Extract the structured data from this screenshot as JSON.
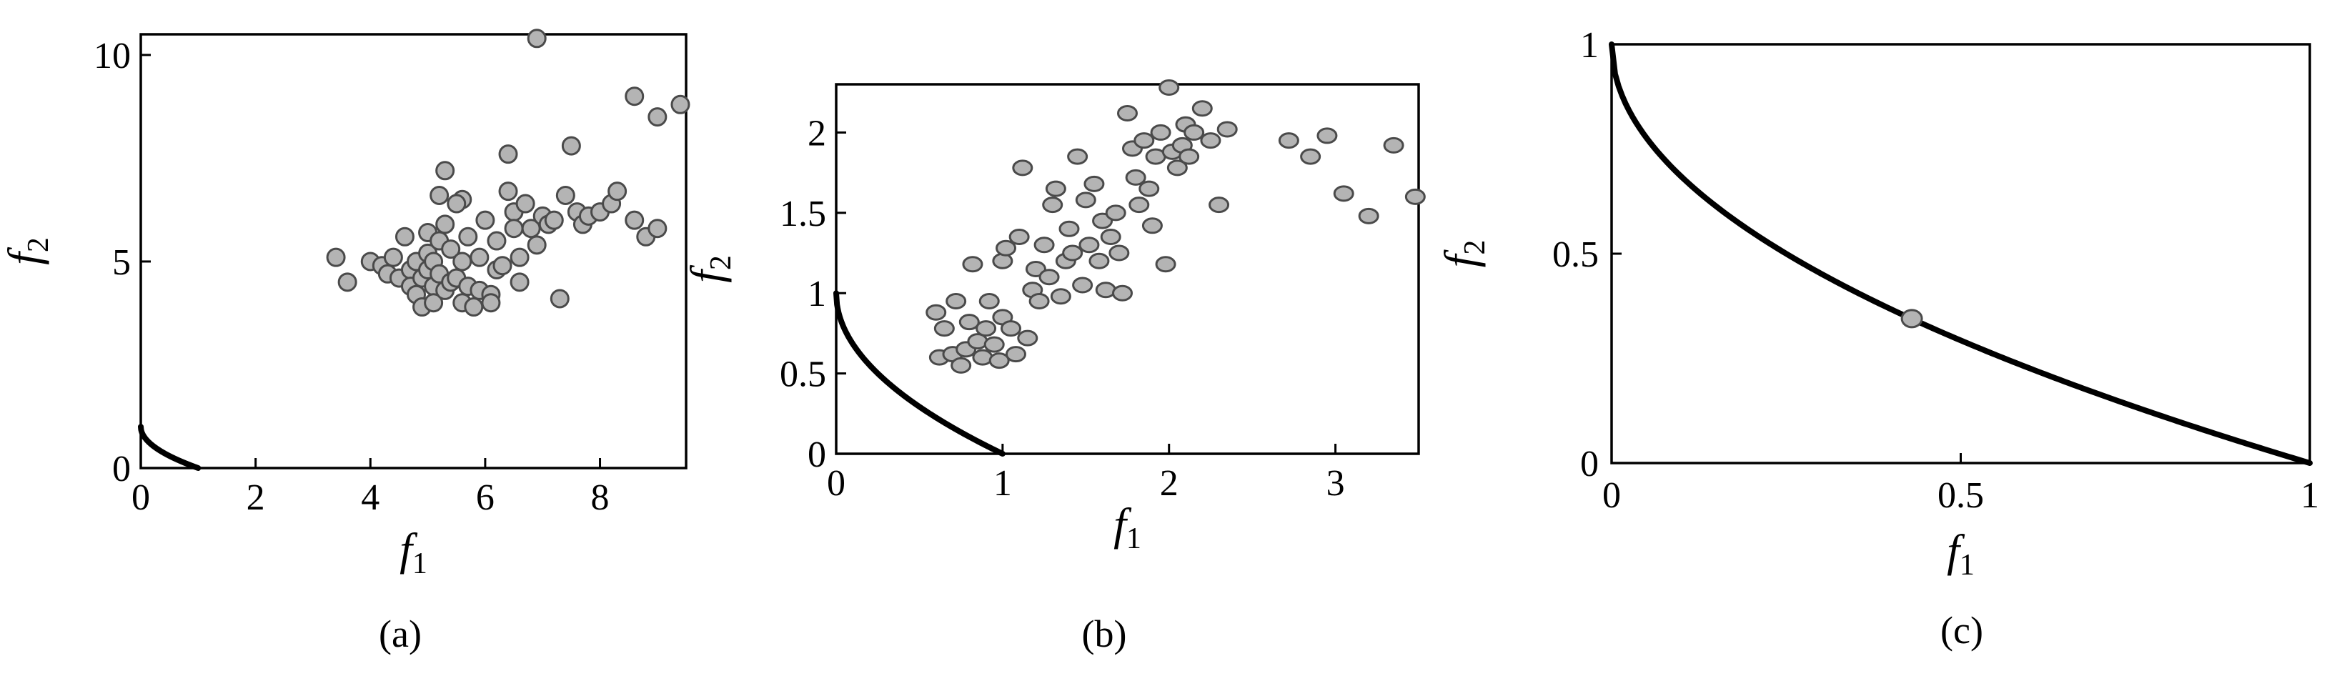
{
  "chart_data": [
    {
      "type": "scatter",
      "panel_label": "(a)",
      "xlabel": "f",
      "xlabel_sub": "1",
      "ylabel": "f",
      "ylabel_sub": "2",
      "xlim": [
        0,
        9.5
      ],
      "ylim": [
        0,
        10.5
      ],
      "xticks": [
        0,
        2,
        4,
        6,
        8
      ],
      "yticks": [
        0,
        5,
        10
      ],
      "grid": false,
      "front": {
        "type": "curve",
        "exponent": 0.5,
        "from": [
          0,
          1
        ],
        "to": [
          1,
          0
        ]
      },
      "points": [
        [
          3.4,
          5.1
        ],
        [
          3.6,
          4.5
        ],
        [
          4.0,
          5.0
        ],
        [
          4.2,
          4.9
        ],
        [
          4.3,
          4.7
        ],
        [
          4.4,
          5.1
        ],
        [
          4.5,
          4.6
        ],
        [
          4.6,
          5.6
        ],
        [
          4.7,
          4.8
        ],
        [
          4.7,
          4.4
        ],
        [
          4.8,
          4.2
        ],
        [
          4.8,
          5.0
        ],
        [
          4.9,
          4.6
        ],
        [
          4.9,
          3.9
        ],
        [
          5.0,
          4.8
        ],
        [
          5.0,
          5.2
        ],
        [
          5.0,
          5.7
        ],
        [
          5.1,
          4.4
        ],
        [
          5.1,
          4.0
        ],
        [
          5.1,
          5.0
        ],
        [
          5.2,
          4.7
        ],
        [
          5.2,
          5.5
        ],
        [
          5.2,
          6.6
        ],
        [
          5.3,
          4.3
        ],
        [
          5.3,
          5.9
        ],
        [
          5.3,
          7.2
        ],
        [
          5.4,
          4.5
        ],
        [
          5.4,
          5.3
        ],
        [
          5.5,
          4.6
        ],
        [
          5.6,
          5.0
        ],
        [
          5.6,
          6.5
        ],
        [
          5.6,
          4.0
        ],
        [
          5.7,
          4.4
        ],
        [
          5.8,
          3.9
        ],
        [
          5.9,
          4.3
        ],
        [
          5.9,
          5.1
        ],
        [
          6.0,
          6.0
        ],
        [
          6.1,
          4.2
        ],
        [
          6.2,
          4.8
        ],
        [
          6.2,
          5.5
        ],
        [
          6.3,
          4.9
        ],
        [
          6.4,
          7.6
        ],
        [
          6.4,
          6.7
        ],
        [
          6.5,
          6.2
        ],
        [
          6.5,
          5.8
        ],
        [
          6.6,
          5.1
        ],
        [
          6.6,
          4.5
        ],
        [
          6.7,
          6.4
        ],
        [
          6.8,
          5.8
        ],
        [
          6.9,
          10.4
        ],
        [
          6.9,
          5.4
        ],
        [
          7.0,
          6.1
        ],
        [
          7.1,
          5.9
        ],
        [
          7.3,
          4.1
        ],
        [
          7.4,
          6.6
        ],
        [
          7.5,
          7.8
        ],
        [
          7.6,
          6.2
        ],
        [
          7.7,
          5.9
        ],
        [
          7.8,
          6.1
        ],
        [
          8.0,
          6.2
        ],
        [
          8.2,
          6.4
        ],
        [
          8.3,
          6.7
        ],
        [
          8.6,
          9.0
        ],
        [
          8.6,
          6.0
        ],
        [
          8.8,
          5.6
        ],
        [
          9.0,
          8.5
        ],
        [
          9.0,
          5.8
        ],
        [
          9.4,
          8.8
        ],
        [
          5.5,
          6.4
        ],
        [
          6.1,
          4.0
        ],
        [
          5.7,
          5.6
        ],
        [
          7.2,
          6.0
        ]
      ]
    },
    {
      "type": "scatter",
      "panel_label": "(b)",
      "xlabel": "f",
      "xlabel_sub": "1",
      "ylabel": "f",
      "ylabel_sub": "2",
      "xlim": [
        0,
        3.5
      ],
      "ylim": [
        0,
        2.3
      ],
      "xticks": [
        0,
        1,
        2,
        3
      ],
      "yticks": [
        0,
        0.5,
        1,
        1.5,
        2
      ],
      "grid": false,
      "front": {
        "type": "curve",
        "exponent": 0.5,
        "from": [
          0,
          1
        ],
        "to": [
          1,
          0
        ]
      },
      "points": [
        [
          0.6,
          0.88
        ],
        [
          0.62,
          0.6
        ],
        [
          0.65,
          0.78
        ],
        [
          0.7,
          0.62
        ],
        [
          0.72,
          0.95
        ],
        [
          0.75,
          0.55
        ],
        [
          0.78,
          0.65
        ],
        [
          0.8,
          0.82
        ],
        [
          0.82,
          1.18
        ],
        [
          0.85,
          0.7
        ],
        [
          0.88,
          0.6
        ],
        [
          0.9,
          0.78
        ],
        [
          0.92,
          0.95
        ],
        [
          0.95,
          0.68
        ],
        [
          0.98,
          0.58
        ],
        [
          1.0,
          1.2
        ],
        [
          1.0,
          0.85
        ],
        [
          1.02,
          1.28
        ],
        [
          1.05,
          0.78
        ],
        [
          1.08,
          0.62
        ],
        [
          1.1,
          1.35
        ],
        [
          1.12,
          1.78
        ],
        [
          1.15,
          0.72
        ],
        [
          1.18,
          1.02
        ],
        [
          1.2,
          1.15
        ],
        [
          1.22,
          0.95
        ],
        [
          1.25,
          1.3
        ],
        [
          1.28,
          1.1
        ],
        [
          1.3,
          1.55
        ],
        [
          1.32,
          1.65
        ],
        [
          1.35,
          0.98
        ],
        [
          1.38,
          1.2
        ],
        [
          1.4,
          1.4
        ],
        [
          1.42,
          1.25
        ],
        [
          1.45,
          1.85
        ],
        [
          1.48,
          1.05
        ],
        [
          1.5,
          1.58
        ],
        [
          1.52,
          1.3
        ],
        [
          1.55,
          1.68
        ],
        [
          1.58,
          1.2
        ],
        [
          1.6,
          1.45
        ],
        [
          1.62,
          1.02
        ],
        [
          1.65,
          1.35
        ],
        [
          1.68,
          1.5
        ],
        [
          1.7,
          1.25
        ],
        [
          1.72,
          1.0
        ],
        [
          1.75,
          2.12
        ],
        [
          1.78,
          1.9
        ],
        [
          1.8,
          1.72
        ],
        [
          1.82,
          1.55
        ],
        [
          1.85,
          1.95
        ],
        [
          1.88,
          1.65
        ],
        [
          1.9,
          1.42
        ],
        [
          1.92,
          1.85
        ],
        [
          1.95,
          2.0
        ],
        [
          1.98,
          1.18
        ],
        [
          2.0,
          2.28
        ],
        [
          2.02,
          1.88
        ],
        [
          2.05,
          1.78
        ],
        [
          2.08,
          1.92
        ],
        [
          2.1,
          2.05
        ],
        [
          2.12,
          1.85
        ],
        [
          2.15,
          2.0
        ],
        [
          2.2,
          2.15
        ],
        [
          2.25,
          1.95
        ],
        [
          2.3,
          1.55
        ],
        [
          2.35,
          2.02
        ],
        [
          2.72,
          1.95
        ],
        [
          2.85,
          1.85
        ],
        [
          2.95,
          1.98
        ],
        [
          3.05,
          1.62
        ],
        [
          3.2,
          1.48
        ],
        [
          3.35,
          1.92
        ],
        [
          3.48,
          1.6
        ]
      ]
    },
    {
      "type": "scatter",
      "panel_label": "(c)",
      "xlabel": "f",
      "xlabel_sub": "1",
      "ylabel": "f",
      "ylabel_sub": "2",
      "xlim": [
        0,
        1
      ],
      "ylim": [
        0,
        1
      ],
      "xticks": [
        0,
        0.5,
        1
      ],
      "yticks": [
        0,
        0.5,
        1
      ],
      "grid": false,
      "front": {
        "type": "curve",
        "exponent": 0.5,
        "from": [
          0,
          1
        ],
        "to": [
          1,
          0
        ]
      },
      "points": [
        [
          0.43,
          0.345
        ]
      ]
    }
  ]
}
